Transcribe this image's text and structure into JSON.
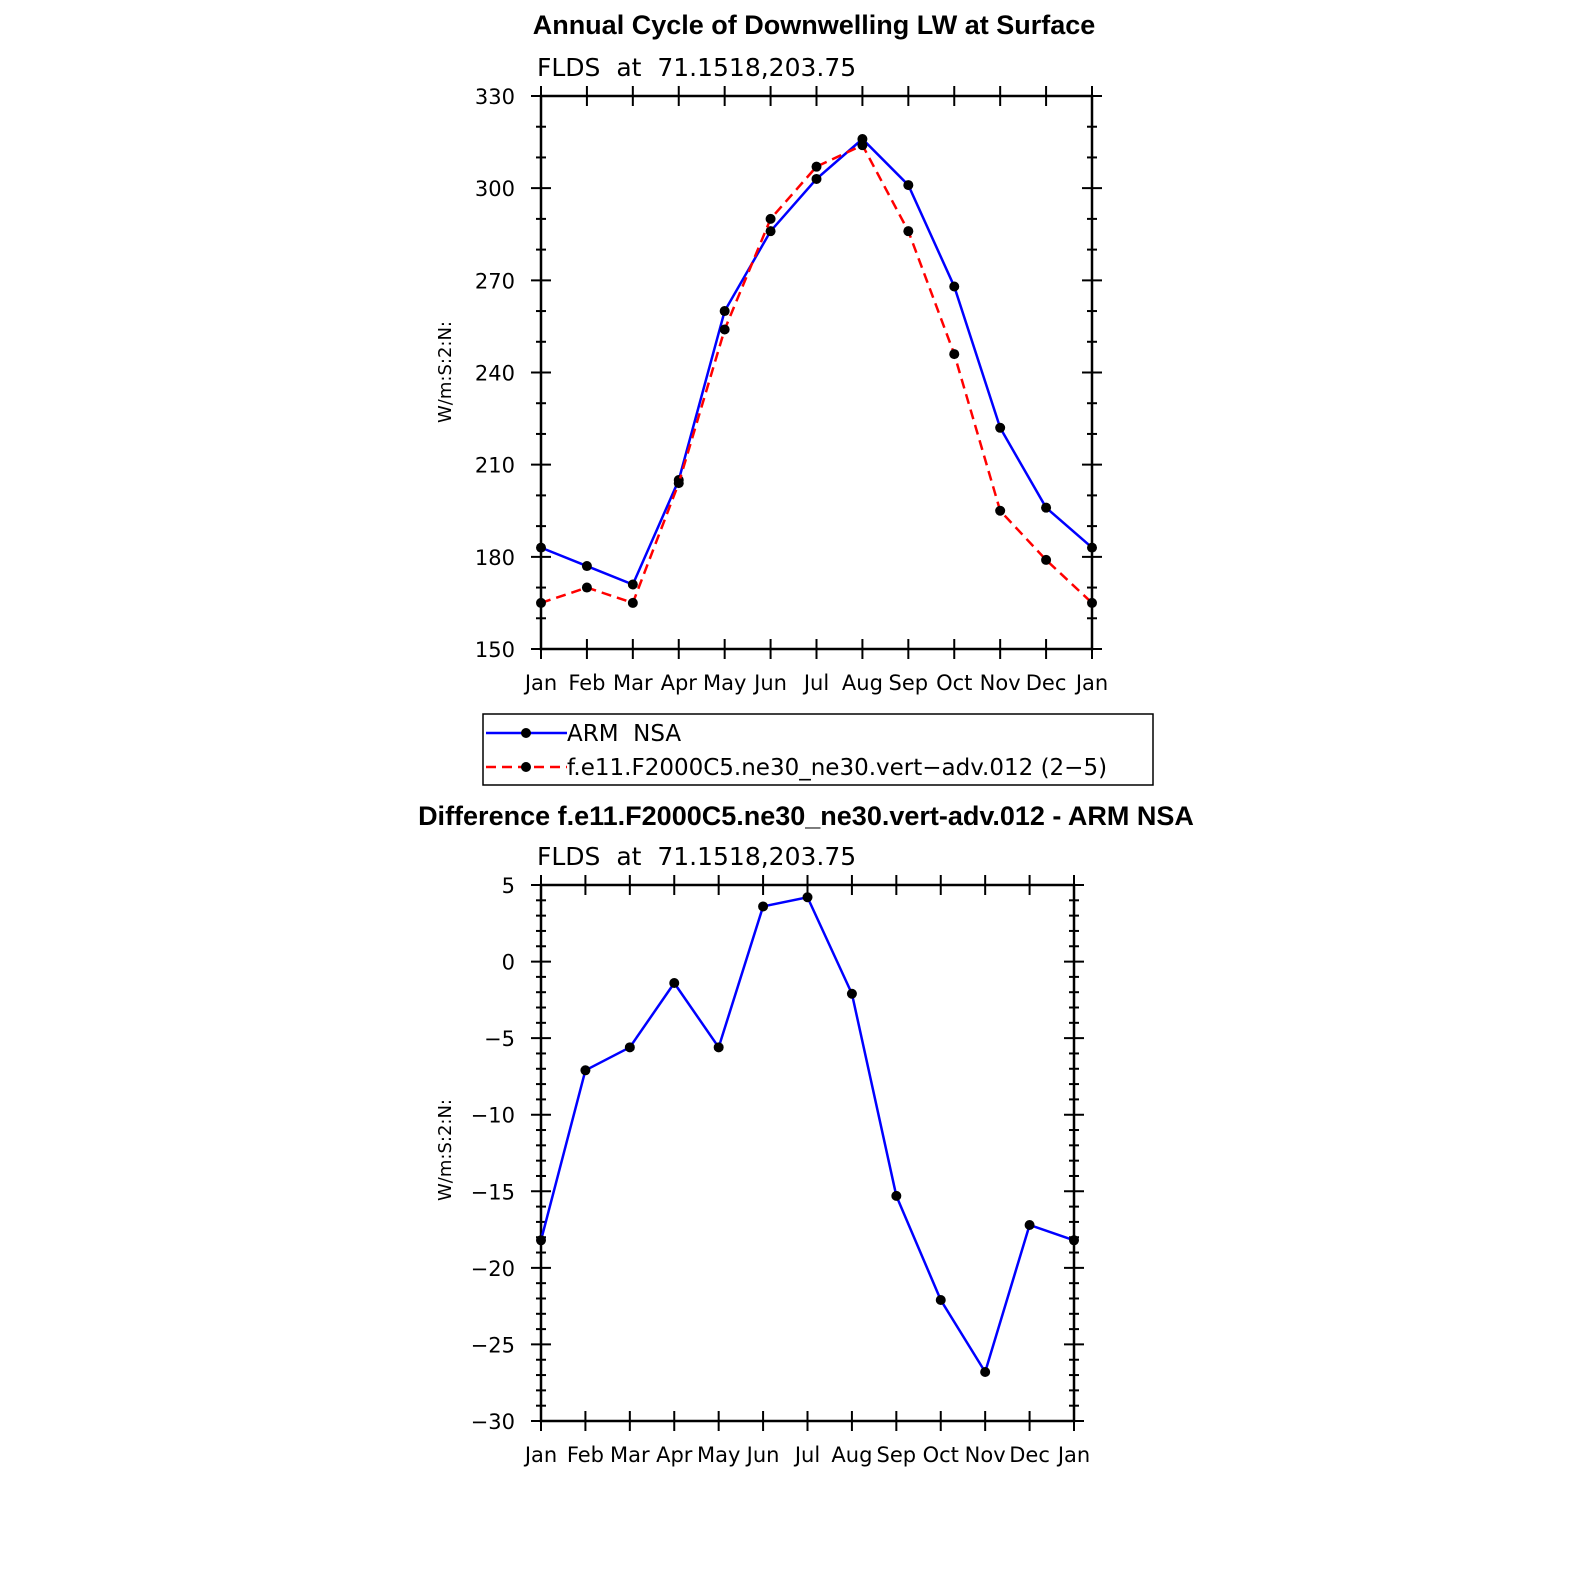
{
  "chart_data": [
    {
      "type": "line",
      "title": "Annual Cycle of Downwelling LW at Surface",
      "subtitle": "FLDS  at  71.1518,203.75",
      "ylabel": "W/m:S:2:N:",
      "xlabel": "",
      "categories": [
        "Jan",
        "Feb",
        "Mar",
        "Apr",
        "May",
        "Jun",
        "Jul",
        "Aug",
        "Sep",
        "Oct",
        "Nov",
        "Dec",
        "Jan"
      ],
      "ylim": [
        150,
        330
      ],
      "yticks": [
        150,
        180,
        210,
        240,
        270,
        300,
        330
      ],
      "grid": false,
      "legend_position": "bottom",
      "series": [
        {
          "name": "ARM  NSA",
          "color": "#0000ff",
          "dash": "solid",
          "values": [
            183,
            177,
            171,
            205,
            260,
            286,
            303,
            316,
            301,
            268,
            222,
            196,
            183
          ]
        },
        {
          "name": "f.e11.F2000C5.ne30_ne30.vert−adv.012 (2−5)",
          "color": "#ff0000",
          "dash": "dashed",
          "values": [
            165,
            170,
            165,
            204,
            254,
            290,
            307,
            314,
            286,
            246,
            195,
            179,
            165
          ]
        }
      ]
    },
    {
      "type": "line",
      "title": "Difference f.e11.F2000C5.ne30_ne30.vert-adv.012 - ARM NSA",
      "subtitle": "FLDS  at  71.1518,203.75",
      "ylabel": "W/m:S:2:N:",
      "xlabel": "",
      "categories": [
        "Jan",
        "Feb",
        "Mar",
        "Apr",
        "May",
        "Jun",
        "Jul",
        "Aug",
        "Sep",
        "Oct",
        "Nov",
        "Dec",
        "Jan"
      ],
      "ylim": [
        -30,
        5
      ],
      "yticks": [
        -30,
        -25,
        -20,
        -15,
        -10,
        -5,
        0,
        5
      ],
      "grid": false,
      "series": [
        {
          "color": "#0000ff",
          "dash": "solid",
          "values": [
            -18.2,
            -7.1,
            -5.6,
            -1.4,
            -5.6,
            3.6,
            4.2,
            -2.1,
            -15.3,
            -22.1,
            -26.8,
            -17.2,
            -18.2
          ]
        }
      ]
    }
  ]
}
